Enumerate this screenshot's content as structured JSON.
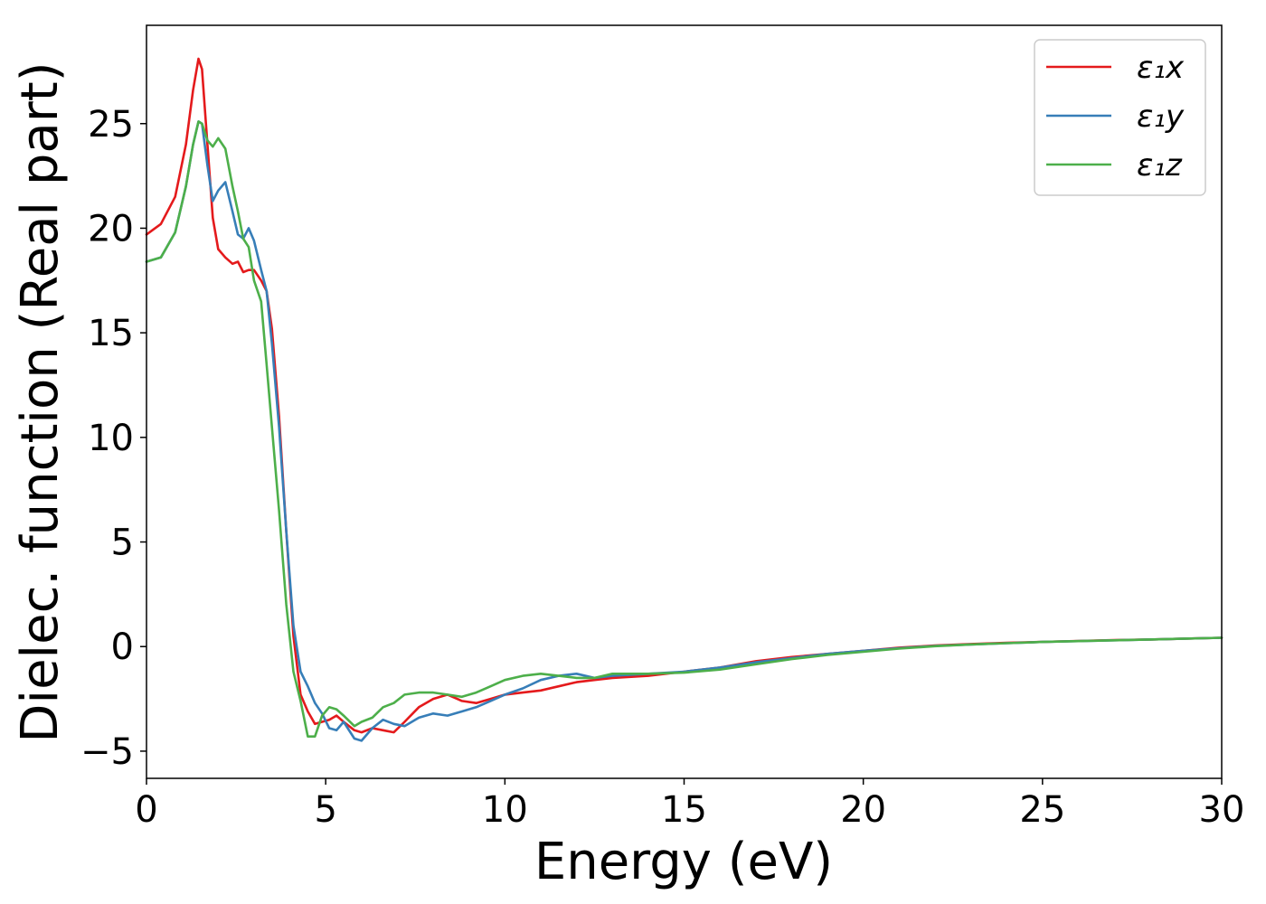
{
  "chart_data": {
    "type": "line",
    "title": "",
    "xlabel": "Energy (eV)",
    "ylabel": "Dielec. function (Real part)",
    "xlim": [
      0,
      30
    ],
    "ylim": [
      -6.3,
      29.7
    ],
    "xticks": [
      0,
      5,
      10,
      15,
      20,
      25,
      30
    ],
    "yticks": [
      -5,
      0,
      5,
      10,
      15,
      20,
      25
    ],
    "ytick_labels": [
      "−5",
      "0",
      "5",
      "10",
      "15",
      "20",
      "25"
    ],
    "grid": false,
    "legend_position": "top-right",
    "series": [
      {
        "name": "ε₁x",
        "color": "#e41a1c",
        "x": [
          0,
          0.4,
          0.8,
          1.1,
          1.3,
          1.45,
          1.55,
          1.7,
          1.85,
          2.0,
          2.2,
          2.4,
          2.55,
          2.7,
          2.85,
          3.0,
          3.2,
          3.35,
          3.5,
          3.7,
          3.9,
          4.1,
          4.3,
          4.5,
          4.7,
          4.9,
          5.1,
          5.3,
          5.5,
          5.8,
          6.0,
          6.3,
          6.6,
          6.9,
          7.2,
          7.6,
          8.0,
          8.4,
          8.8,
          9.2,
          9.6,
          10.0,
          10.5,
          11.0,
          11.5,
          12.0,
          12.5,
          13.0,
          14.0,
          15.0,
          16.0,
          17.0,
          18.0,
          19.0,
          20.0,
          21.0,
          22.0,
          23.0,
          24.0,
          25.0,
          26.0,
          27.0,
          28.0,
          29.0,
          30.0
        ],
        "y": [
          19.7,
          20.2,
          21.5,
          24.0,
          26.6,
          28.1,
          27.6,
          24.0,
          20.5,
          19.0,
          18.6,
          18.3,
          18.4,
          17.9,
          18.0,
          18.0,
          17.5,
          17.0,
          15.2,
          11.0,
          5.5,
          0.5,
          -2.3,
          -3.1,
          -3.7,
          -3.6,
          -3.5,
          -3.3,
          -3.6,
          -4.0,
          -4.1,
          -3.9,
          -4.0,
          -4.1,
          -3.6,
          -2.9,
          -2.5,
          -2.3,
          -2.6,
          -2.7,
          -2.5,
          -2.3,
          -2.2,
          -2.1,
          -1.9,
          -1.7,
          -1.6,
          -1.5,
          -1.4,
          -1.2,
          -1.0,
          -0.7,
          -0.5,
          -0.35,
          -0.2,
          -0.05,
          0.05,
          0.12,
          0.18,
          0.22,
          0.27,
          0.31,
          0.34,
          0.38,
          0.42
        ]
      },
      {
        "name": "ε₁y",
        "color": "#377eb8",
        "x": [
          0,
          0.4,
          0.8,
          1.1,
          1.3,
          1.45,
          1.55,
          1.7,
          1.85,
          2.0,
          2.2,
          2.4,
          2.55,
          2.7,
          2.85,
          3.0,
          3.2,
          3.35,
          3.5,
          3.7,
          3.9,
          4.1,
          4.3,
          4.5,
          4.7,
          4.9,
          5.1,
          5.3,
          5.5,
          5.8,
          6.0,
          6.3,
          6.6,
          6.9,
          7.2,
          7.6,
          8.0,
          8.4,
          8.8,
          9.2,
          9.6,
          10.0,
          10.5,
          11.0,
          11.5,
          12.0,
          12.5,
          13.0,
          14.0,
          15.0,
          16.0,
          17.0,
          18.0,
          19.0,
          20.0,
          21.0,
          22.0,
          23.0,
          24.0,
          25.0,
          26.0,
          27.0,
          28.0,
          29.0,
          30.0
        ],
        "y": [
          18.4,
          18.6,
          19.8,
          22.0,
          24.0,
          25.1,
          25.0,
          23.0,
          21.3,
          21.8,
          22.2,
          20.8,
          19.7,
          19.5,
          20.0,
          19.4,
          18.0,
          17.0,
          14.5,
          10.5,
          5.5,
          1.0,
          -1.2,
          -1.9,
          -2.7,
          -3.2,
          -3.9,
          -4.0,
          -3.6,
          -4.4,
          -4.5,
          -3.9,
          -3.5,
          -3.7,
          -3.8,
          -3.4,
          -3.2,
          -3.3,
          -3.1,
          -2.9,
          -2.6,
          -2.3,
          -2.0,
          -1.6,
          -1.4,
          -1.3,
          -1.5,
          -1.4,
          -1.3,
          -1.2,
          -1.0,
          -0.75,
          -0.55,
          -0.35,
          -0.2,
          -0.08,
          0.03,
          0.1,
          0.16,
          0.22,
          0.26,
          0.3,
          0.34,
          0.38,
          0.42
        ]
      },
      {
        "name": "ε₁z",
        "color": "#4daf4a",
        "x": [
          0,
          0.4,
          0.8,
          1.1,
          1.3,
          1.45,
          1.55,
          1.7,
          1.85,
          2.0,
          2.2,
          2.4,
          2.55,
          2.7,
          2.85,
          3.0,
          3.2,
          3.35,
          3.5,
          3.7,
          3.9,
          4.1,
          4.3,
          4.5,
          4.7,
          4.9,
          5.1,
          5.3,
          5.5,
          5.8,
          6.0,
          6.3,
          6.6,
          6.9,
          7.2,
          7.6,
          8.0,
          8.4,
          8.8,
          9.2,
          9.6,
          10.0,
          10.5,
          11.0,
          11.5,
          12.0,
          12.5,
          13.0,
          14.0,
          15.0,
          16.0,
          17.0,
          18.0,
          19.0,
          20.0,
          21.0,
          22.0,
          23.0,
          24.0,
          25.0,
          26.0,
          27.0,
          28.0,
          29.0,
          30.0
        ],
        "y": [
          18.4,
          18.6,
          19.8,
          22.0,
          24.0,
          25.1,
          25.0,
          24.2,
          23.9,
          24.3,
          23.8,
          22.0,
          20.8,
          19.5,
          19.1,
          17.5,
          16.5,
          13.5,
          10.5,
          6.5,
          2.0,
          -1.2,
          -2.6,
          -4.3,
          -4.3,
          -3.3,
          -2.9,
          -3.0,
          -3.3,
          -3.8,
          -3.6,
          -3.4,
          -2.9,
          -2.7,
          -2.3,
          -2.2,
          -2.2,
          -2.3,
          -2.4,
          -2.2,
          -1.9,
          -1.6,
          -1.4,
          -1.3,
          -1.4,
          -1.5,
          -1.5,
          -1.3,
          -1.3,
          -1.25,
          -1.1,
          -0.85,
          -0.6,
          -0.4,
          -0.25,
          -0.1,
          0.02,
          0.1,
          0.16,
          0.22,
          0.26,
          0.3,
          0.34,
          0.38,
          0.42
        ]
      }
    ]
  }
}
